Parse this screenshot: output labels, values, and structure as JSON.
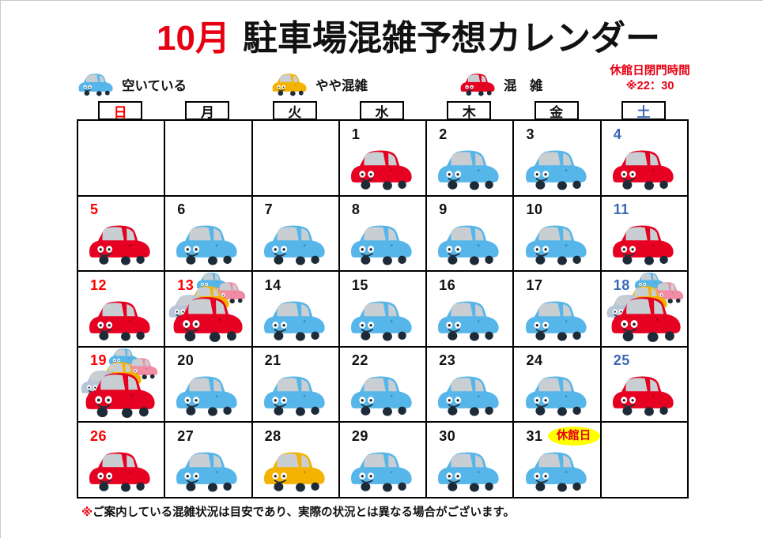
{
  "title": {
    "month": "10月",
    "text": "駐車場混雑予想カレンダー"
  },
  "closing_notice": {
    "line1": "休館日閉門時間",
    "line2": "※22：30",
    "color": "#e60012"
  },
  "legend": [
    {
      "status": "available",
      "label": "空いている"
    },
    {
      "status": "slightly-crowded",
      "label": "やや混雑"
    },
    {
      "status": "crowded",
      "label": "混　雑"
    }
  ],
  "weekday_headers": [
    {
      "label": "日",
      "color": "#ff0000"
    },
    {
      "label": "月",
      "color": "#111111"
    },
    {
      "label": "火",
      "color": "#111111"
    },
    {
      "label": "水",
      "color": "#111111"
    },
    {
      "label": "木",
      "color": "#111111"
    },
    {
      "label": "金",
      "color": "#111111"
    },
    {
      "label": "土",
      "color": "#3a68b5"
    }
  ],
  "weeks": [
    [
      {
        "day": ""
      },
      {
        "day": ""
      },
      {
        "day": ""
      },
      {
        "day": "1",
        "num_color": "#111111",
        "status": "crowded"
      },
      {
        "day": "2",
        "num_color": "#111111",
        "status": "available"
      },
      {
        "day": "3",
        "num_color": "#111111",
        "status": "available"
      },
      {
        "day": "4",
        "num_color": "#3a68b5",
        "status": "crowded"
      }
    ],
    [
      {
        "day": "5",
        "num_color": "#ff0000",
        "status": "crowded"
      },
      {
        "day": "6",
        "num_color": "#111111",
        "status": "available"
      },
      {
        "day": "7",
        "num_color": "#111111",
        "status": "available"
      },
      {
        "day": "8",
        "num_color": "#111111",
        "status": "available"
      },
      {
        "day": "9",
        "num_color": "#111111",
        "status": "available"
      },
      {
        "day": "10",
        "num_color": "#111111",
        "status": "available"
      },
      {
        "day": "11",
        "num_color": "#3a68b5",
        "status": "crowded"
      }
    ],
    [
      {
        "day": "12",
        "num_color": "#ff0000",
        "status": "crowded"
      },
      {
        "day": "13",
        "num_color": "#ff0000",
        "status": "jam"
      },
      {
        "day": "14",
        "num_color": "#111111",
        "status": "available"
      },
      {
        "day": "15",
        "num_color": "#111111",
        "status": "available"
      },
      {
        "day": "16",
        "num_color": "#111111",
        "status": "available"
      },
      {
        "day": "17",
        "num_color": "#111111",
        "status": "available"
      },
      {
        "day": "18",
        "num_color": "#3a68b5",
        "status": "jam",
        "jam_align": "right"
      }
    ],
    [
      {
        "day": "19",
        "num_color": "#ff0000",
        "status": "jam",
        "jam_align": "left"
      },
      {
        "day": "20",
        "num_color": "#111111",
        "status": "available"
      },
      {
        "day": "21",
        "num_color": "#111111",
        "status": "available"
      },
      {
        "day": "22",
        "num_color": "#111111",
        "status": "available"
      },
      {
        "day": "23",
        "num_color": "#111111",
        "status": "available"
      },
      {
        "day": "24",
        "num_color": "#111111",
        "status": "available"
      },
      {
        "day": "25",
        "num_color": "#3a68b5",
        "status": "crowded"
      }
    ],
    [
      {
        "day": "26",
        "num_color": "#ff0000",
        "status": "crowded"
      },
      {
        "day": "27",
        "num_color": "#111111",
        "status": "available"
      },
      {
        "day": "28",
        "num_color": "#111111",
        "status": "slightly-crowded"
      },
      {
        "day": "29",
        "num_color": "#111111",
        "status": "available"
      },
      {
        "day": "30",
        "num_color": "#111111",
        "status": "available"
      },
      {
        "day": "31",
        "num_color": "#111111",
        "status": "available",
        "badge": "休館日"
      },
      {
        "day": ""
      }
    ]
  ],
  "status_colors": {
    "available": "#56b6e9",
    "slightly-crowded": "#f4b300",
    "crowded": "#e60021"
  },
  "jam_colors": {
    "front": "#e60021",
    "second": "#b7c6d9",
    "third": "#f4b300",
    "fourth": "#f08ca4",
    "fifth": "#56b6e9"
  },
  "badge_style": {
    "bg": "#ffff00",
    "text_color": "#e60012"
  },
  "footnote": {
    "mark": "※",
    "text": "ご案内している混雑状況は目安であり、実際の状況とは異なる場合がございます。"
  }
}
